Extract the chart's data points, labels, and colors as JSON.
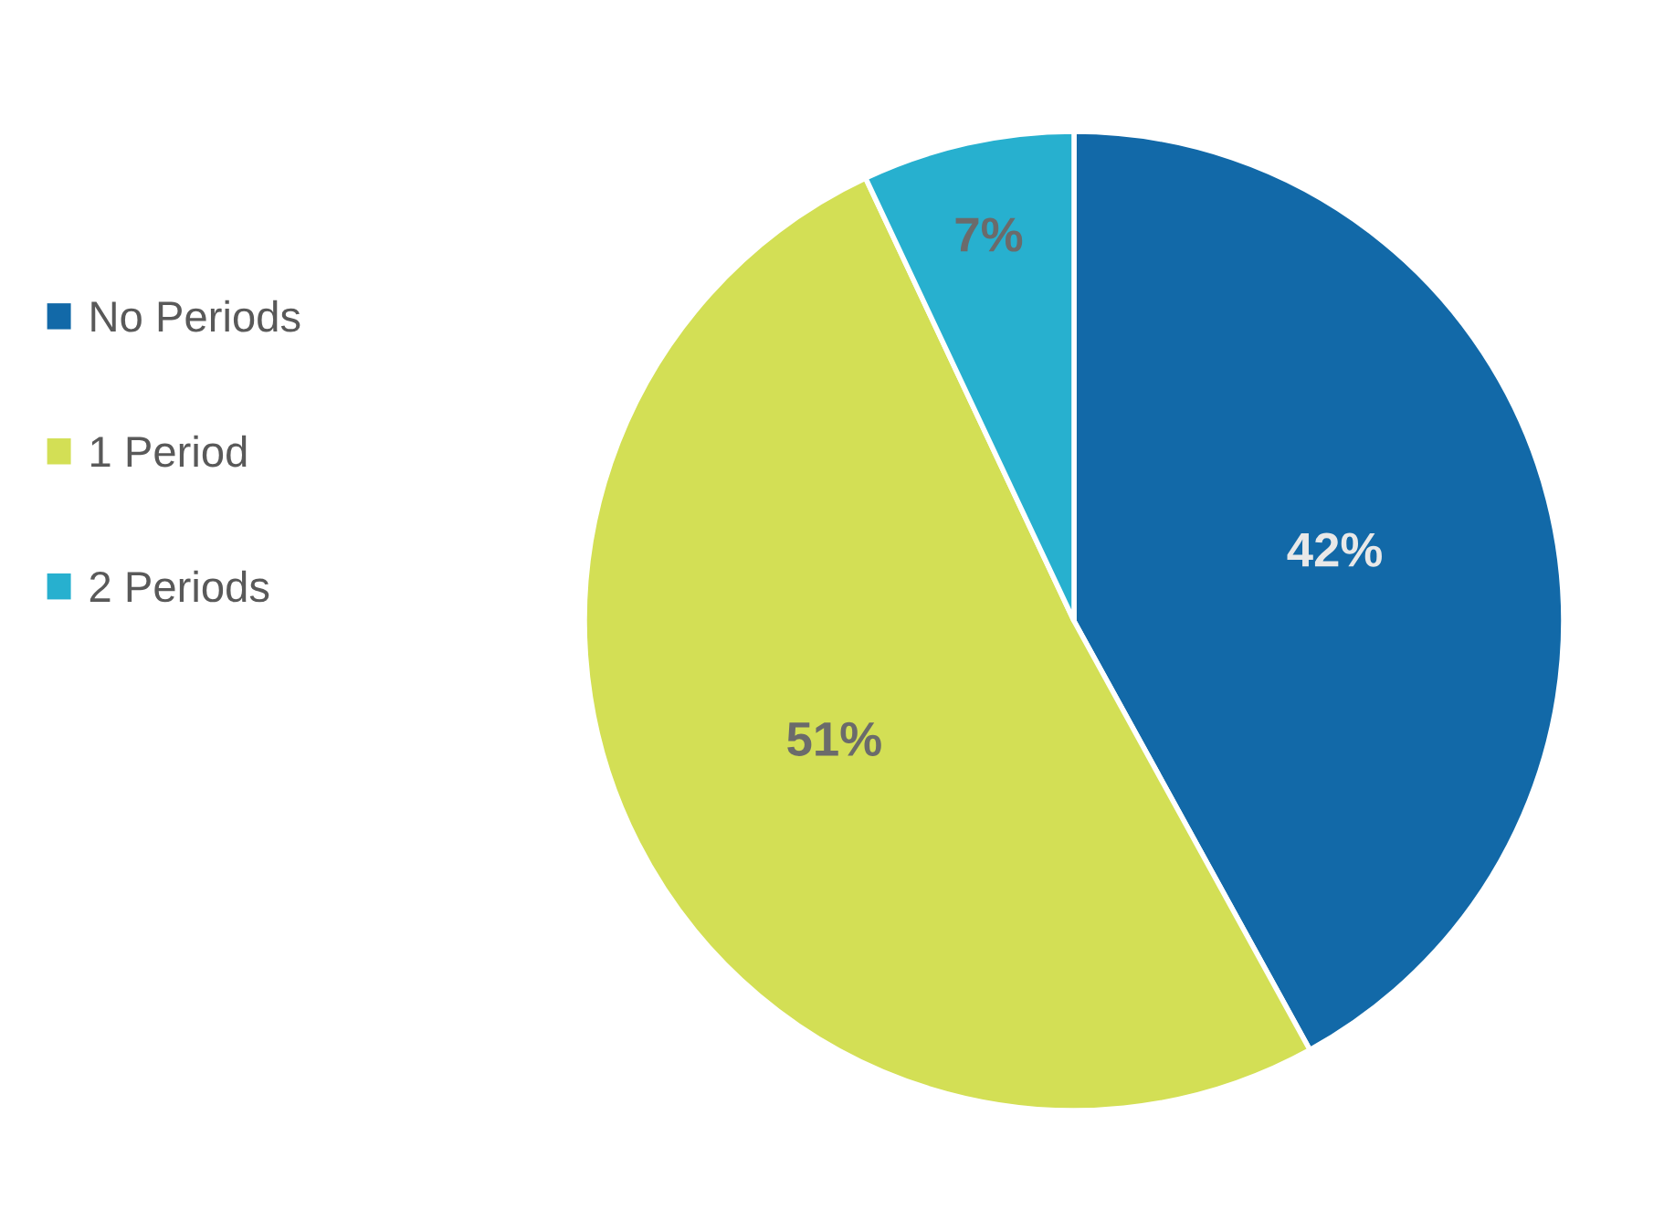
{
  "chart_data": {
    "type": "pie",
    "categories": [
      "No Periods",
      "1 Period",
      "2 Periods"
    ],
    "values": [
      42,
      51,
      7
    ],
    "colors": [
      "#1269a8",
      "#d3df55",
      "#27b0cf"
    ],
    "value_labels": [
      "42%",
      "51%",
      "7%"
    ],
    "legend": "left"
  }
}
